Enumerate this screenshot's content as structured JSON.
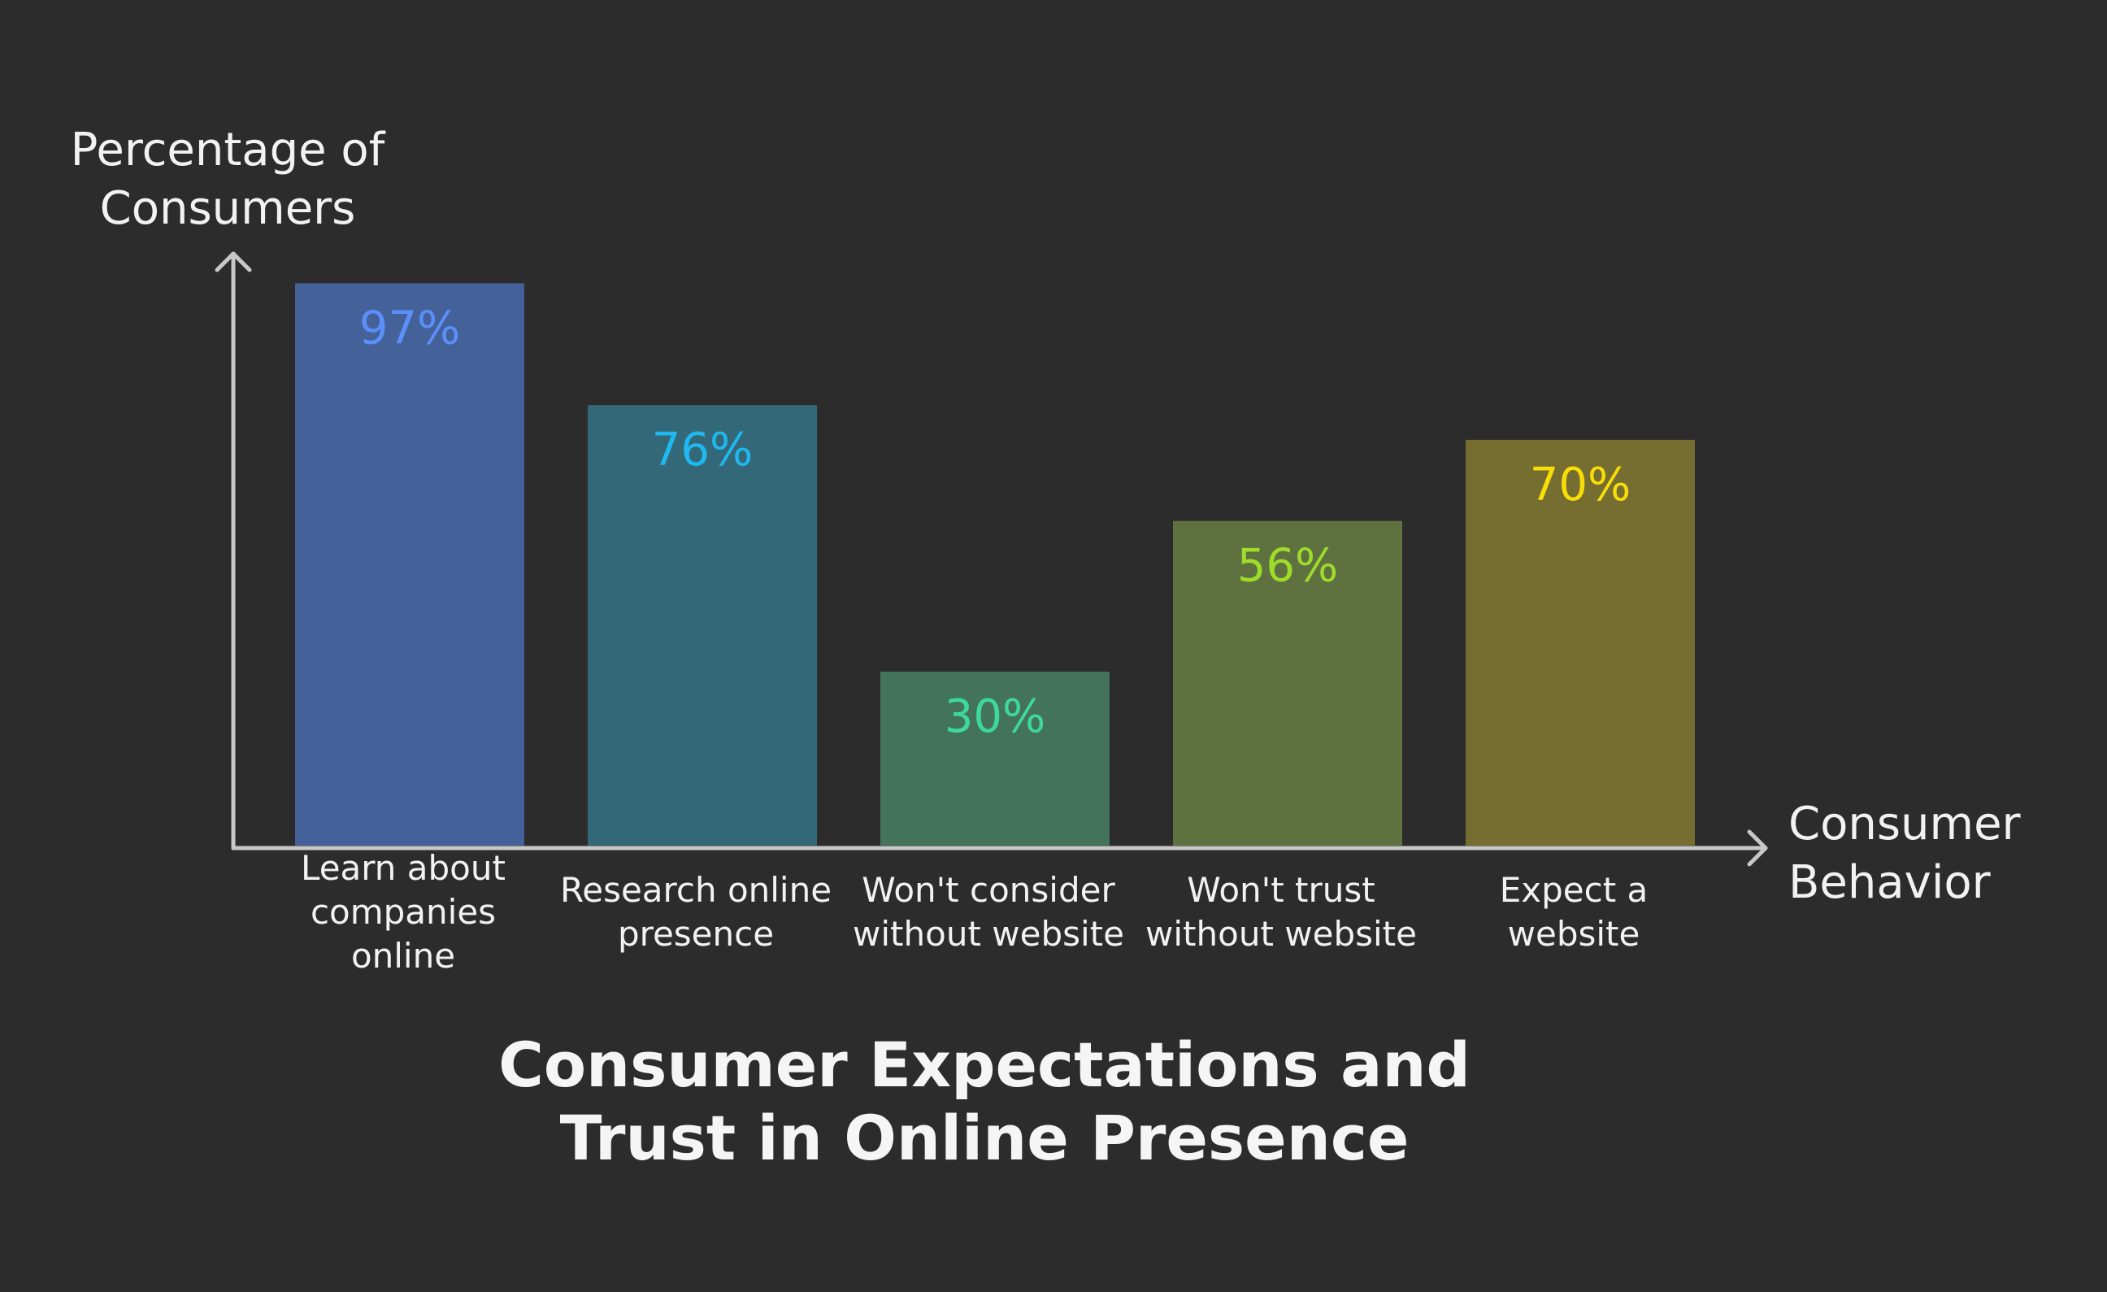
{
  "chart_data": {
    "type": "bar",
    "title": "Consumer Expectations and Trust in Online Presence",
    "ylabel": "Percentage of Consumers",
    "xlabel": "Consumer Behavior",
    "categories": [
      "Learn about companies online",
      "Research online presence",
      "Won't consider without website",
      "Won't trust without website",
      "Expect a website"
    ],
    "values": [
      97,
      76,
      30,
      56,
      70
    ],
    "value_labels": [
      "97%",
      "76%",
      "30%",
      "56%",
      "70%"
    ],
    "ylim": [
      0,
      100
    ],
    "grid": false,
    "legend": "none",
    "bar_colors": [
      "#44619a",
      "#336878",
      "#43735b",
      "#5f713f",
      "#766d30"
    ],
    "label_colors": [
      "#5b8ff9",
      "#1fb8f0",
      "#3ed99a",
      "#9ddc2a",
      "#f8de08"
    ],
    "axis_color": "#c8c8c8",
    "background": "#2c2c2c"
  }
}
